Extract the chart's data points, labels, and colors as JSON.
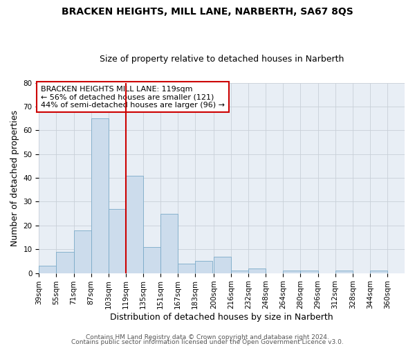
{
  "title": "BRACKEN HEIGHTS, MILL LANE, NARBERTH, SA67 8QS",
  "subtitle": "Size of property relative to detached houses in Narberth",
  "xlabel": "Distribution of detached houses by size in Narberth",
  "ylabel": "Number of detached properties",
  "bar_color": "#ccdcec",
  "bar_edge_color": "#7aaac8",
  "grid_color": "#c8d0d8",
  "bg_color": "#e8eef5",
  "fig_bg_color": "#ffffff",
  "red_line_x": 119,
  "red_line_color": "#cc0000",
  "annotation_text": "BRACKEN HEIGHTS MILL LANE: 119sqm\n← 56% of detached houses are smaller (121)\n44% of semi-detached houses are larger (96) →",
  "annotation_box_color": "#ffffff",
  "annotation_box_edge": "#cc0000",
  "bins": [
    39,
    55,
    71,
    87,
    103,
    119,
    135,
    151,
    167,
    183,
    200,
    216,
    232,
    248,
    264,
    280,
    296,
    312,
    328,
    344,
    360
  ],
  "values": [
    3,
    9,
    18,
    65,
    27,
    41,
    11,
    25,
    4,
    5,
    7,
    1,
    2,
    0,
    1,
    1,
    0,
    1,
    0,
    1
  ],
  "ylim": [
    0,
    80
  ],
  "yticks": [
    0,
    10,
    20,
    30,
    40,
    50,
    60,
    70,
    80
  ],
  "footer_line1": "Contains HM Land Registry data © Crown copyright and database right 2024.",
  "footer_line2": "Contains public sector information licensed under the Open Government Licence v3.0.",
  "title_fontsize": 10,
  "subtitle_fontsize": 9,
  "axis_label_fontsize": 9,
  "tick_fontsize": 7.5,
  "annotation_fontsize": 8,
  "footer_fontsize": 6.5
}
